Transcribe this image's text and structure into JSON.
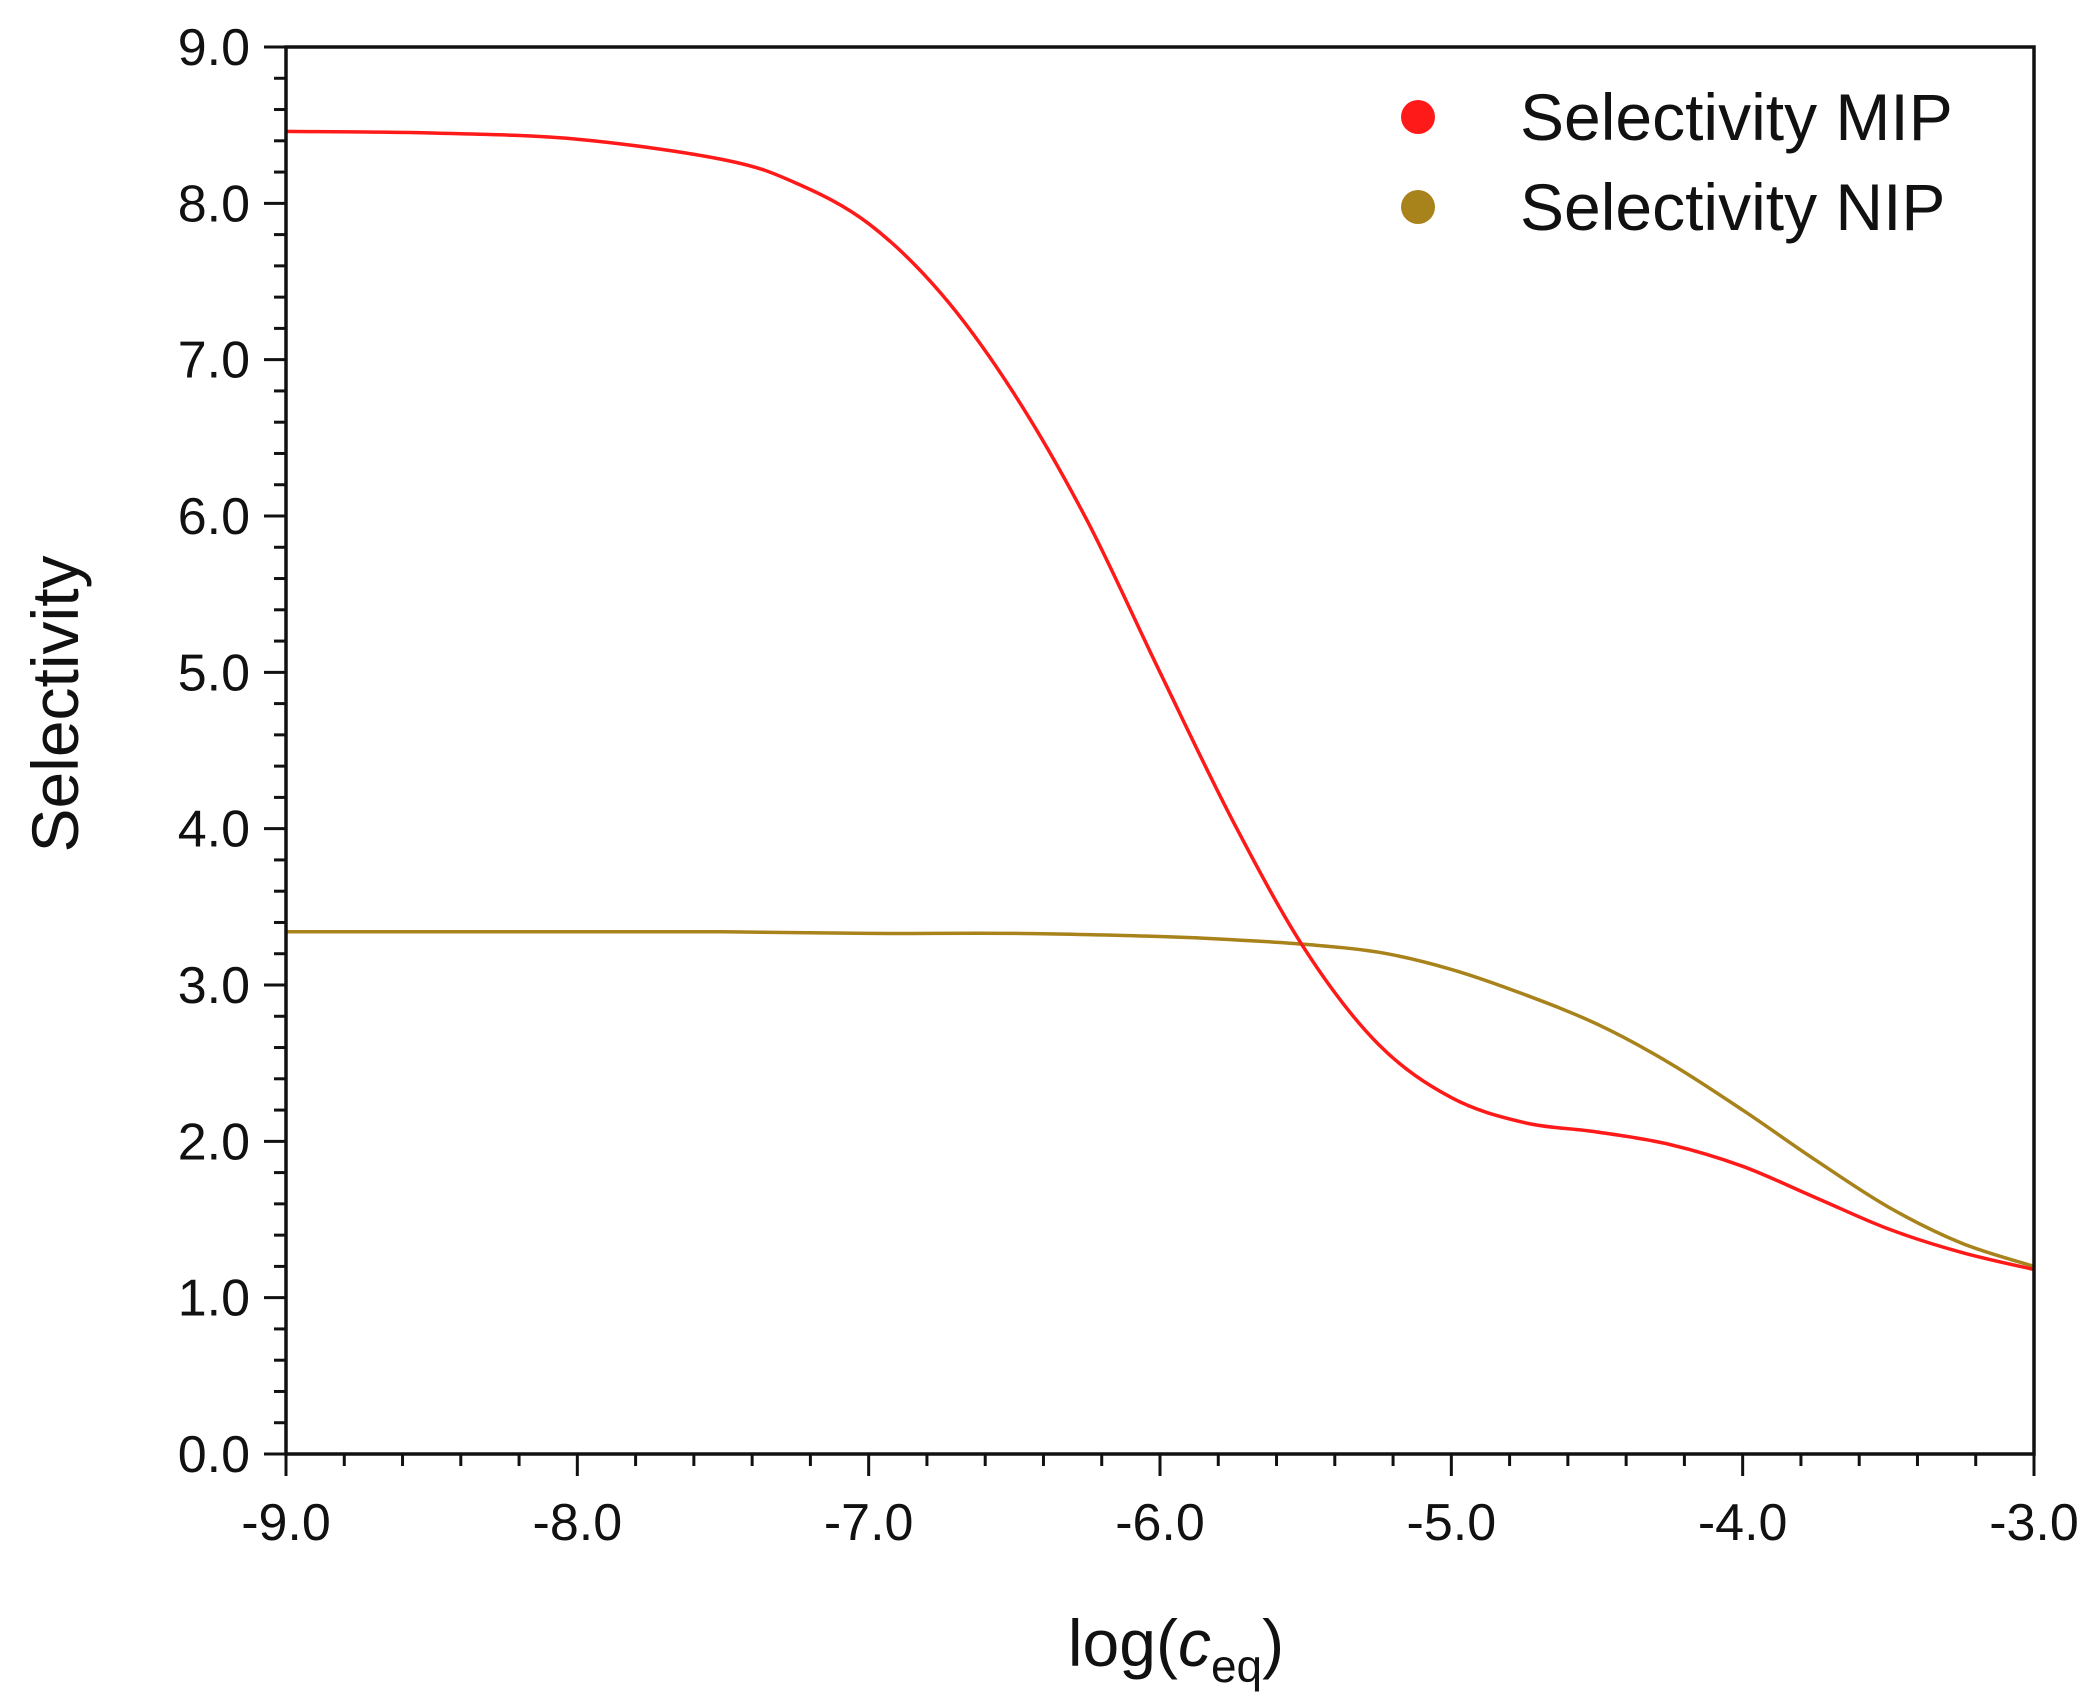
{
  "chart_data": {
    "type": "line",
    "title": "",
    "xlabel": {
      "prefix": "log(",
      "var": "c",
      "sub": "eq",
      "suffix": ")"
    },
    "ylabel": "Selectivity",
    "xlim": [
      -9.0,
      -3.0
    ],
    "ylim": [
      0.0,
      9.0
    ],
    "xticks": [
      "-9.0",
      "-8.0",
      "-7.0",
      "-6.0",
      "-5.0",
      "-4.0",
      "-3.0"
    ],
    "yticks": [
      "0.0",
      "1.0",
      "2.0",
      "3.0",
      "4.0",
      "5.0",
      "6.0",
      "7.0",
      "8.0",
      "9.0"
    ],
    "grid": false,
    "legend_position": "top-right",
    "series": [
      {
        "name": "Selectivity MIP",
        "color": "#ff1a1a",
        "x": [
          -9.0,
          -8.5,
          -8.0,
          -7.5,
          -7.25,
          -7.0,
          -6.75,
          -6.5,
          -6.25,
          -6.0,
          -5.75,
          -5.5,
          -5.25,
          -5.0,
          -4.75,
          -4.5,
          -4.25,
          -4.0,
          -3.75,
          -3.5,
          -3.25,
          -3.0
        ],
        "y": [
          8.46,
          8.45,
          8.41,
          8.28,
          8.13,
          7.87,
          7.42,
          6.78,
          5.97,
          5.0,
          4.05,
          3.22,
          2.62,
          2.28,
          2.12,
          2.06,
          1.98,
          1.84,
          1.64,
          1.44,
          1.29,
          1.18
        ]
      },
      {
        "name": "Selectivity NIP",
        "color": "#a8821a",
        "x": [
          -9.0,
          -8.5,
          -8.0,
          -7.5,
          -7.0,
          -6.5,
          -6.0,
          -5.75,
          -5.5,
          -5.25,
          -5.0,
          -4.75,
          -4.5,
          -4.25,
          -4.0,
          -3.75,
          -3.5,
          -3.25,
          -3.0
        ],
        "y": [
          3.34,
          3.34,
          3.34,
          3.34,
          3.33,
          3.33,
          3.31,
          3.29,
          3.26,
          3.21,
          3.1,
          2.94,
          2.75,
          2.5,
          2.2,
          1.88,
          1.58,
          1.35,
          1.2
        ]
      }
    ]
  }
}
